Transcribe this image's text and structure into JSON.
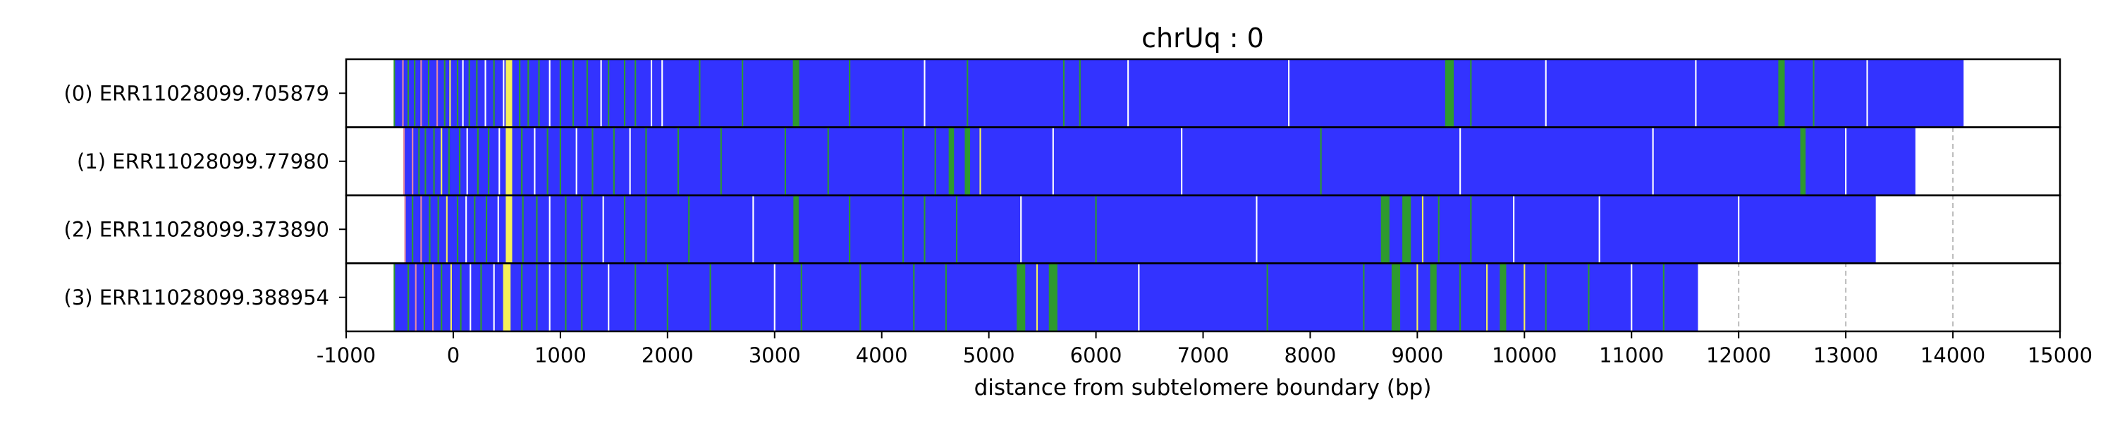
{
  "chart_data": {
    "type": "heatmap",
    "title": "chrUq : 0",
    "xlabel": "distance from subtelomere boundary (bp)",
    "ylabel": "",
    "xlim": [
      -1000,
      15000
    ],
    "xticks": [
      -1000,
      0,
      1000,
      2000,
      3000,
      4000,
      5000,
      6000,
      7000,
      8000,
      9000,
      10000,
      11000,
      12000,
      13000,
      14000,
      15000
    ],
    "xtick_labels": [
      "-1000",
      "0",
      "1000",
      "2000",
      "3000",
      "4000",
      "5000",
      "6000",
      "7000",
      "8000",
      "9000",
      "10000",
      "11000",
      "12000",
      "13000",
      "14000",
      "15000"
    ],
    "grid": "vertical dashed at x ticks",
    "colors": {
      "main": "#3333ff",
      "green": "#2e9a2e",
      "yellow": "#f5f05a",
      "pink": "#e58aa0",
      "white": "#ffffff",
      "cyan": "#7fd6e0",
      "grid": "#bbbbbb",
      "frame": "#000000"
    },
    "reads": [
      {
        "label": "(0) ERR11028099.705879",
        "start": -550,
        "end": 14100,
        "features": [
          {
            "pos": -550,
            "color": "green"
          },
          {
            "pos": -470,
            "color": "pink"
          },
          {
            "pos": -420,
            "color": "green"
          },
          {
            "pos": -360,
            "color": "green"
          },
          {
            "pos": -300,
            "color": "pink"
          },
          {
            "pos": -230,
            "color": "green"
          },
          {
            "pos": -150,
            "color": "pink"
          },
          {
            "pos": -80,
            "color": "green"
          },
          {
            "pos": -30,
            "color": "yellow"
          },
          {
            "pos": 40,
            "color": "green"
          },
          {
            "pos": 90,
            "color": "white"
          },
          {
            "pos": 150,
            "color": "green"
          },
          {
            "pos": 220,
            "color": "green"
          },
          {
            "pos": 300,
            "color": "white"
          },
          {
            "pos": 380,
            "color": "green"
          },
          {
            "pos": 470,
            "color": "white"
          },
          {
            "pos": 520,
            "color": "yellow",
            "width": 60
          },
          {
            "pos": 620,
            "color": "green"
          },
          {
            "pos": 700,
            "color": "green"
          },
          {
            "pos": 800,
            "color": "green"
          },
          {
            "pos": 900,
            "color": "white"
          },
          {
            "pos": 1000,
            "color": "green"
          },
          {
            "pos": 1120,
            "color": "green"
          },
          {
            "pos": 1250,
            "color": "green"
          },
          {
            "pos": 1380,
            "color": "white"
          },
          {
            "pos": 1450,
            "color": "green"
          },
          {
            "pos": 1600,
            "color": "green"
          },
          {
            "pos": 1700,
            "color": "green"
          },
          {
            "pos": 1850,
            "color": "white"
          },
          {
            "pos": 1950,
            "color": "white"
          },
          {
            "pos": 2300,
            "color": "green"
          },
          {
            "pos": 2700,
            "color": "green"
          },
          {
            "pos": 3200,
            "color": "green",
            "width": 60
          },
          {
            "pos": 3700,
            "color": "green"
          },
          {
            "pos": 4400,
            "color": "white"
          },
          {
            "pos": 4800,
            "color": "green"
          },
          {
            "pos": 5700,
            "color": "green"
          },
          {
            "pos": 5850,
            "color": "green"
          },
          {
            "pos": 6300,
            "color": "white"
          },
          {
            "pos": 7800,
            "color": "white"
          },
          {
            "pos": 9300,
            "color": "green",
            "width": 80
          },
          {
            "pos": 9500,
            "color": "green"
          },
          {
            "pos": 10200,
            "color": "white"
          },
          {
            "pos": 11600,
            "color": "white"
          },
          {
            "pos": 12400,
            "color": "green",
            "width": 60
          },
          {
            "pos": 12700,
            "color": "green"
          },
          {
            "pos": 13200,
            "color": "white"
          }
        ]
      },
      {
        "label": "(1) ERR11028099.77980",
        "start": -460,
        "end": 13650,
        "features": [
          {
            "pos": -460,
            "color": "pink"
          },
          {
            "pos": -380,
            "color": "pink"
          },
          {
            "pos": -320,
            "color": "green"
          },
          {
            "pos": -260,
            "color": "green"
          },
          {
            "pos": -180,
            "color": "green"
          },
          {
            "pos": -110,
            "color": "yellow"
          },
          {
            "pos": -40,
            "color": "green"
          },
          {
            "pos": 60,
            "color": "green"
          },
          {
            "pos": 130,
            "color": "white"
          },
          {
            "pos": 230,
            "color": "green"
          },
          {
            "pos": 330,
            "color": "green"
          },
          {
            "pos": 430,
            "color": "white"
          },
          {
            "pos": 520,
            "color": "yellow",
            "width": 60
          },
          {
            "pos": 640,
            "color": "green"
          },
          {
            "pos": 760,
            "color": "white"
          },
          {
            "pos": 880,
            "color": "green"
          },
          {
            "pos": 1000,
            "color": "green"
          },
          {
            "pos": 1150,
            "color": "white"
          },
          {
            "pos": 1300,
            "color": "green"
          },
          {
            "pos": 1500,
            "color": "green"
          },
          {
            "pos": 1650,
            "color": "white"
          },
          {
            "pos": 1800,
            "color": "green"
          },
          {
            "pos": 2100,
            "color": "green"
          },
          {
            "pos": 2500,
            "color": "green"
          },
          {
            "pos": 3100,
            "color": "green"
          },
          {
            "pos": 3500,
            "color": "green"
          },
          {
            "pos": 4200,
            "color": "green"
          },
          {
            "pos": 4500,
            "color": "green"
          },
          {
            "pos": 4650,
            "color": "green",
            "width": 50
          },
          {
            "pos": 4800,
            "color": "green",
            "width": 50
          },
          {
            "pos": 4920,
            "color": "yellow"
          },
          {
            "pos": 5600,
            "color": "white"
          },
          {
            "pos": 6800,
            "color": "white"
          },
          {
            "pos": 8100,
            "color": "green"
          },
          {
            "pos": 9400,
            "color": "white"
          },
          {
            "pos": 11200,
            "color": "white"
          },
          {
            "pos": 12600,
            "color": "green",
            "width": 50
          },
          {
            "pos": 13000,
            "color": "white"
          }
        ]
      },
      {
        "label": "(2) ERR11028099.373890",
        "start": -450,
        "end": 13280,
        "features": [
          {
            "pos": -450,
            "color": "pink"
          },
          {
            "pos": -380,
            "color": "green"
          },
          {
            "pos": -300,
            "color": "pink"
          },
          {
            "pos": -220,
            "color": "green"
          },
          {
            "pos": -140,
            "color": "green"
          },
          {
            "pos": -60,
            "color": "yellow"
          },
          {
            "pos": 40,
            "color": "green"
          },
          {
            "pos": 120,
            "color": "white"
          },
          {
            "pos": 200,
            "color": "green"
          },
          {
            "pos": 310,
            "color": "green"
          },
          {
            "pos": 420,
            "color": "white"
          },
          {
            "pos": 520,
            "color": "yellow",
            "width": 60
          },
          {
            "pos": 650,
            "color": "green"
          },
          {
            "pos": 780,
            "color": "green"
          },
          {
            "pos": 900,
            "color": "white"
          },
          {
            "pos": 1050,
            "color": "green"
          },
          {
            "pos": 1200,
            "color": "green"
          },
          {
            "pos": 1400,
            "color": "white"
          },
          {
            "pos": 1600,
            "color": "green"
          },
          {
            "pos": 1800,
            "color": "green"
          },
          {
            "pos": 2200,
            "color": "green"
          },
          {
            "pos": 2800,
            "color": "white"
          },
          {
            "pos": 3200,
            "color": "green",
            "width": 50
          },
          {
            "pos": 3700,
            "color": "green"
          },
          {
            "pos": 4200,
            "color": "green"
          },
          {
            "pos": 4400,
            "color": "green"
          },
          {
            "pos": 4700,
            "color": "green"
          },
          {
            "pos": 5300,
            "color": "white"
          },
          {
            "pos": 6000,
            "color": "green"
          },
          {
            "pos": 7500,
            "color": "white"
          },
          {
            "pos": 8700,
            "color": "green",
            "width": 80
          },
          {
            "pos": 8900,
            "color": "green",
            "width": 80
          },
          {
            "pos": 9050,
            "color": "yellow"
          },
          {
            "pos": 9200,
            "color": "green"
          },
          {
            "pos": 9500,
            "color": "green"
          },
          {
            "pos": 9900,
            "color": "white"
          },
          {
            "pos": 10700,
            "color": "white"
          },
          {
            "pos": 12000,
            "color": "white"
          }
        ]
      },
      {
        "label": "(3) ERR11028099.388954",
        "start": -550,
        "end": 11620,
        "features": [
          {
            "pos": -550,
            "color": "green"
          },
          {
            "pos": -420,
            "color": "green"
          },
          {
            "pos": -350,
            "color": "pink"
          },
          {
            "pos": -270,
            "color": "green"
          },
          {
            "pos": -190,
            "color": "pink"
          },
          {
            "pos": -110,
            "color": "green"
          },
          {
            "pos": -20,
            "color": "yellow"
          },
          {
            "pos": 70,
            "color": "green"
          },
          {
            "pos": 160,
            "color": "white"
          },
          {
            "pos": 260,
            "color": "green"
          },
          {
            "pos": 380,
            "color": "white"
          },
          {
            "pos": 500,
            "color": "yellow",
            "width": 70
          },
          {
            "pos": 640,
            "color": "green"
          },
          {
            "pos": 780,
            "color": "green"
          },
          {
            "pos": 900,
            "color": "white"
          },
          {
            "pos": 1050,
            "color": "green"
          },
          {
            "pos": 1200,
            "color": "green"
          },
          {
            "pos": 1450,
            "color": "white"
          },
          {
            "pos": 1700,
            "color": "green"
          },
          {
            "pos": 2000,
            "color": "green"
          },
          {
            "pos": 2400,
            "color": "green"
          },
          {
            "pos": 3000,
            "color": "white"
          },
          {
            "pos": 3250,
            "color": "green"
          },
          {
            "pos": 3800,
            "color": "green"
          },
          {
            "pos": 4300,
            "color": "green"
          },
          {
            "pos": 4600,
            "color": "green"
          },
          {
            "pos": 5300,
            "color": "green",
            "width": 80
          },
          {
            "pos": 5450,
            "color": "yellow"
          },
          {
            "pos": 5600,
            "color": "green",
            "width": 80
          },
          {
            "pos": 6400,
            "color": "white"
          },
          {
            "pos": 7600,
            "color": "green"
          },
          {
            "pos": 8500,
            "color": "green"
          },
          {
            "pos": 8800,
            "color": "green",
            "width": 80
          },
          {
            "pos": 9000,
            "color": "yellow"
          },
          {
            "pos": 9150,
            "color": "green",
            "width": 60
          },
          {
            "pos": 9400,
            "color": "green"
          },
          {
            "pos": 9650,
            "color": "yellow"
          },
          {
            "pos": 9800,
            "color": "green",
            "width": 60
          },
          {
            "pos": 10000,
            "color": "yellow"
          },
          {
            "pos": 10200,
            "color": "green"
          },
          {
            "pos": 10600,
            "color": "green"
          },
          {
            "pos": 11000,
            "color": "white"
          },
          {
            "pos": 11300,
            "color": "green"
          }
        ]
      }
    ]
  }
}
